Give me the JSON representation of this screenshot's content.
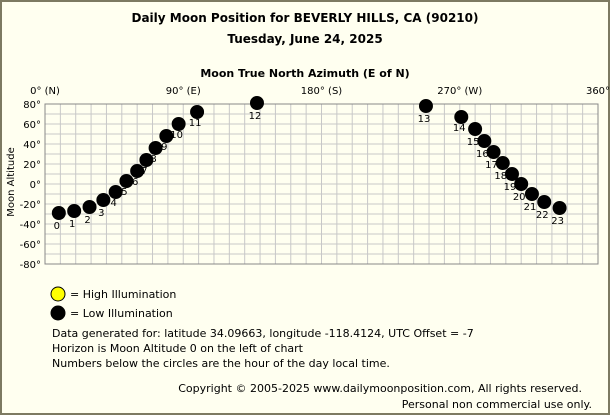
{
  "chart_data": {
    "type": "scatter",
    "title": "Daily Moon Position for BEVERLY HILLS, CA (90210)",
    "subtitle": "Tuesday, June 24, 2025",
    "xlabel": "Moon True North Azimuth (E of N)",
    "ylabel": "Moon Altitude",
    "xlim": [
      0,
      360
    ],
    "ylim": [
      -80,
      80
    ],
    "x_ticks": [
      {
        "value": 0,
        "label": "0° (N)"
      },
      {
        "value": 90,
        "label": "90° (E)"
      },
      {
        "value": 180,
        "label": "180° (S)"
      },
      {
        "value": 270,
        "label": "270° (W)"
      },
      {
        "value": 360,
        "label": "360°"
      }
    ],
    "y_ticks": [
      {
        "value": 80,
        "label": "80°"
      },
      {
        "value": 60,
        "label": "60°"
      },
      {
        "value": 40,
        "label": "40°"
      },
      {
        "value": 20,
        "label": "20°"
      },
      {
        "value": 0,
        "label": "0°"
      },
      {
        "value": -20,
        "label": "-20°"
      },
      {
        "value": -40,
        "label": "-40°"
      },
      {
        "value": -60,
        "label": "-60°"
      },
      {
        "value": -80,
        "label": "-80°"
      }
    ],
    "grid": true,
    "grid_step_x": 10,
    "grid_step_y": 10,
    "colors": {
      "high": "#ffff00",
      "low": "#000000",
      "grid": "#c8c8c8",
      "frame": "#7d7a62",
      "background": "#fffff0"
    },
    "points": [
      {
        "hour": "0",
        "azimuth": 9,
        "altitude": -29
      },
      {
        "hour": "1",
        "azimuth": 19,
        "altitude": -27
      },
      {
        "hour": "2",
        "azimuth": 29,
        "altitude": -23
      },
      {
        "hour": "3",
        "azimuth": 38,
        "altitude": -16
      },
      {
        "hour": "4",
        "azimuth": 46,
        "altitude": -8
      },
      {
        "hour": "5",
        "azimuth": 53,
        "altitude": 3
      },
      {
        "hour": "6",
        "azimuth": 60,
        "altitude": 13
      },
      {
        "hour": "7",
        "azimuth": 66,
        "altitude": 24
      },
      {
        "hour": "8",
        "azimuth": 72,
        "altitude": 36
      },
      {
        "hour": "9",
        "azimuth": 79,
        "altitude": 48
      },
      {
        "hour": "10",
        "azimuth": 87,
        "altitude": 60
      },
      {
        "hour": "11",
        "azimuth": 99,
        "altitude": 72
      },
      {
        "hour": "12",
        "azimuth": 138,
        "altitude": 81
      },
      {
        "hour": "13",
        "azimuth": 248,
        "altitude": 78
      },
      {
        "hour": "14",
        "azimuth": 271,
        "altitude": 67
      },
      {
        "hour": "15",
        "azimuth": 280,
        "altitude": 55
      },
      {
        "hour": "16",
        "azimuth": 286,
        "altitude": 43
      },
      {
        "hour": "17",
        "azimuth": 292,
        "altitude": 32
      },
      {
        "hour": "18",
        "azimuth": 298,
        "altitude": 21
      },
      {
        "hour": "19",
        "azimuth": 304,
        "altitude": 10
      },
      {
        "hour": "20",
        "azimuth": 310,
        "altitude": 0
      },
      {
        "hour": "21",
        "azimuth": 317,
        "altitude": -10
      },
      {
        "hour": "22",
        "azimuth": 325,
        "altitude": -18
      },
      {
        "hour": "23",
        "azimuth": 335,
        "altitude": -24
      }
    ],
    "hour_label_dy": [
      14,
      14,
      14,
      14,
      12,
      12,
      12,
      12,
      12,
      12,
      12,
      12,
      14,
      14,
      12,
      14,
      14,
      14,
      14,
      14,
      14,
      14,
      14,
      14
    ],
    "legend": [
      {
        "label": "= High Illumination",
        "color": "#ffff00"
      },
      {
        "label": "= Low Illumination",
        "color": "#000000"
      }
    ]
  },
  "notes": [
    "Data generated for: latitude 34.09663, longitude -118.4124, UTC Offset = -7",
    "Horizon is Moon Altitude 0 on the left of chart",
    "Numbers below the circles are the hour of the day local time."
  ],
  "copyright": [
    "Copyright © 2005-2025 www.dailymoonposition.com, All rights reserved.",
    "Personal non commercial use only."
  ]
}
